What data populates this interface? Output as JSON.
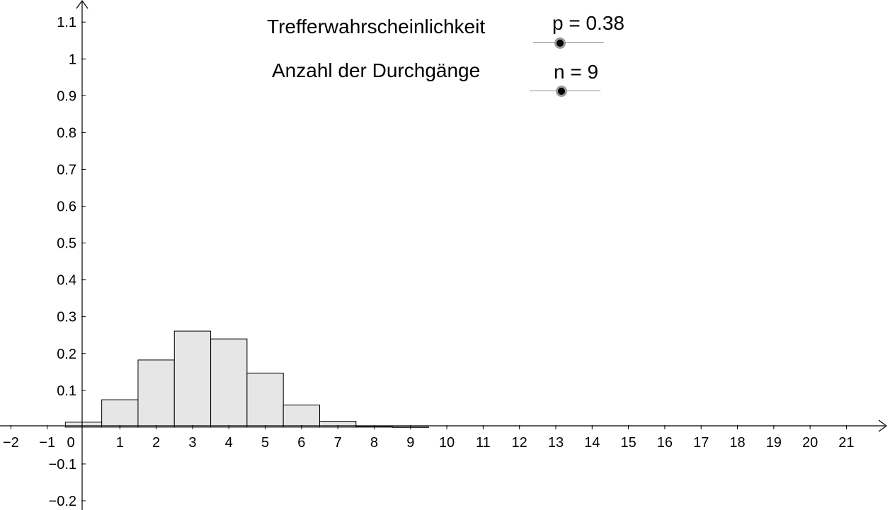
{
  "controls": {
    "p_slider": {
      "label": "Trefferwahrscheinlichkeit",
      "value_text": "p = 0.38"
    },
    "n_slider": {
      "label": "Anzahl der Durchgänge",
      "value_text": "n = 9"
    }
  },
  "chart_data": {
    "type": "bar",
    "title": "",
    "xlabel": "",
    "ylabel": "",
    "x": [
      0,
      1,
      2,
      3,
      4,
      5,
      6,
      7,
      8,
      9
    ],
    "values": [
      0.0135,
      0.0744,
      0.1824,
      0.2608,
      0.2396,
      0.1469,
      0.06,
      0.0158,
      0.0024,
      0.0002
    ],
    "xlim": [
      -2.3,
      22.2
    ],
    "ylim": [
      -0.225,
      1.16
    ],
    "x_ticks": [
      -2,
      -1,
      0,
      1,
      2,
      3,
      4,
      5,
      6,
      7,
      8,
      9,
      10,
      11,
      12,
      13,
      14,
      15,
      16,
      17,
      18,
      19,
      20,
      21
    ],
    "y_ticks": [
      -0.2,
      -0.1,
      0.1,
      0.2,
      0.3,
      0.4,
      0.5,
      0.6,
      0.7,
      0.8,
      0.9,
      1,
      1.1
    ],
    "x_tick_labels": [
      "−2",
      "−1",
      "0",
      "1",
      "2",
      "3",
      "4",
      "5",
      "6",
      "7",
      "8",
      "9",
      "10",
      "11",
      "12",
      "13",
      "14",
      "15",
      "16",
      "17",
      "18",
      "19",
      "20",
      "21"
    ],
    "y_tick_labels": [
      "−0.2",
      "−0.1",
      "0.1",
      "0.2",
      "0.3",
      "0.4",
      "0.5",
      "0.6",
      "0.7",
      "0.8",
      "0.9",
      "1",
      "1.1"
    ],
    "grid": false,
    "bar_fill": "#e6e6e6",
    "bar_stroke": "#000000"
  }
}
